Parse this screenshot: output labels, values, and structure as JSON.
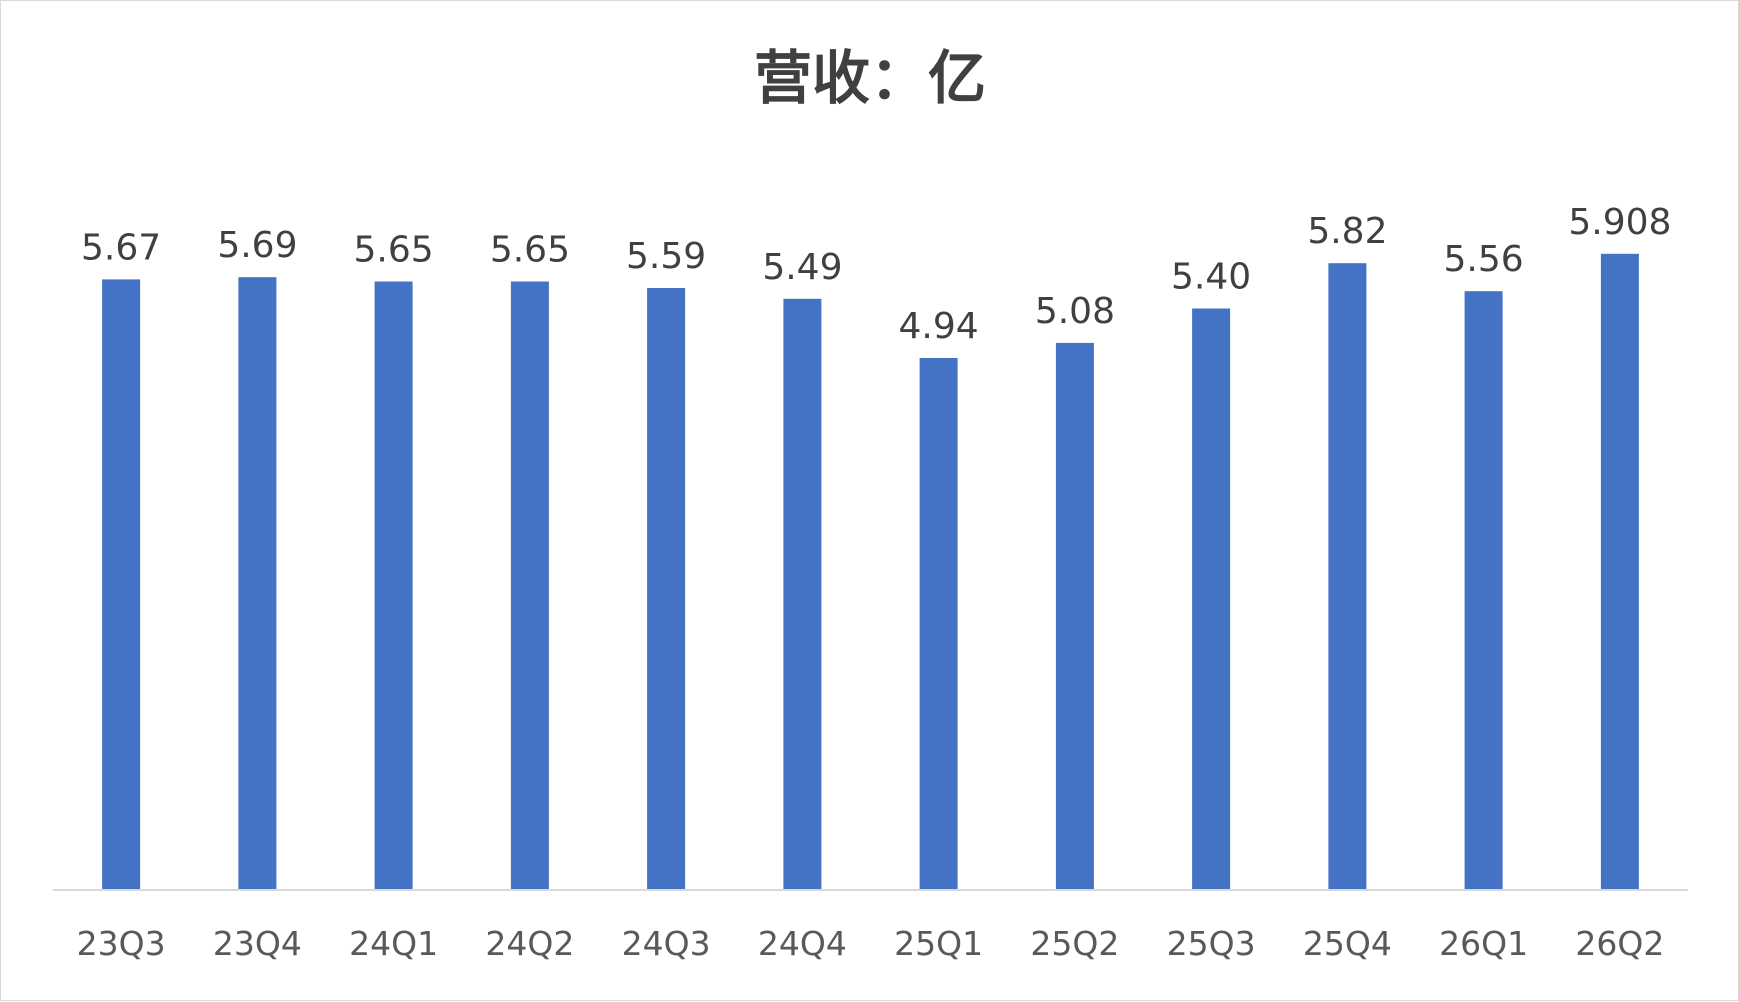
{
  "chart_data": {
    "type": "bar",
    "title": "营收：亿",
    "xlabel": "",
    "ylabel": "",
    "categories": [
      "23Q3",
      "23Q4",
      "24Q1",
      "24Q2",
      "24Q3",
      "24Q4",
      "25Q1",
      "25Q2",
      "25Q3",
      "25Q4",
      "26Q1",
      "26Q2"
    ],
    "values": [
      5.67,
      5.69,
      5.65,
      5.65,
      5.59,
      5.49,
      4.94,
      5.08,
      5.4,
      5.82,
      5.56,
      5.908
    ],
    "data_labels": [
      "5.67",
      "5.69",
      "5.65",
      "5.65",
      "5.59",
      "5.49",
      "4.94",
      "5.08",
      "5.40",
      "5.82",
      "5.56",
      "5.908"
    ],
    "ylim": [
      0,
      6.5
    ],
    "grid": false,
    "legend": "none",
    "colors": {
      "bar": "#4472C4",
      "axis": "#d9d9d9",
      "text": "#404040",
      "tick_text": "#595959"
    }
  }
}
